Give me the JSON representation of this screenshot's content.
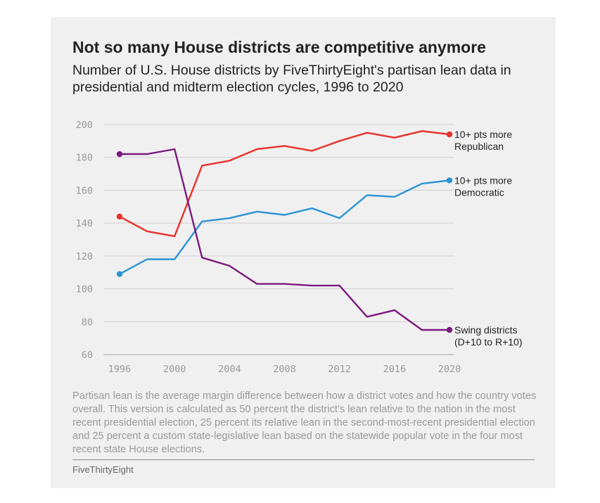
{
  "header": {
    "title": "Not so many House districts are competitive anymore",
    "subtitle": "Number of U.S. House districts by FiveThirtyEight's partisan lean data in presidential and midterm election cycles, 1996 to 2020"
  },
  "footnote": "Partisan lean is the average margin difference between how a district votes and how the country votes overall. This version is calculated as 50 percent the district’s lean relative to the nation in the most recent presidential election, 25 percent its relative lean in the second-most-recent presidential election and 25 percent a custom state-legislative lean based on the statewide popular vote in the four most recent state House elections.",
  "source": "FiveThirtyEight",
  "chart_data": {
    "type": "line",
    "x": [
      1996,
      1998,
      2000,
      2002,
      2004,
      2006,
      2008,
      2010,
      2012,
      2014,
      2016,
      2018,
      2020
    ],
    "xticks": [
      1996,
      2000,
      2004,
      2008,
      2012,
      2016,
      2020
    ],
    "xticklabels": [
      "1996",
      "2000",
      "2004",
      "2008",
      "2012",
      "2016",
      "2020"
    ],
    "yticks": [
      60,
      80,
      100,
      120,
      140,
      160,
      180,
      200
    ],
    "yticklabels": [
      "60",
      "80",
      "100",
      "120",
      "140",
      "160",
      "180",
      "200"
    ],
    "ylim": [
      60,
      200
    ],
    "xlim": [
      1996,
      2020
    ],
    "grid": true,
    "series": [
      {
        "label_lines": [
          "10+ pts more",
          "Republican"
        ],
        "color": "#e8312a",
        "values": [
          144,
          135,
          132,
          175,
          178,
          185,
          187,
          184,
          190,
          195,
          192,
          196,
          194
        ]
      },
      {
        "label_lines": [
          "10+ pts more",
          "Democratic"
        ],
        "color": "#2a93d5",
        "values": [
          109,
          118,
          118,
          141,
          143,
          147,
          145,
          149,
          143,
          157,
          156,
          164,
          166
        ]
      },
      {
        "label_lines": [
          "Swing districts",
          "(D+10 to R+10)"
        ],
        "color": "#7b1a7e",
        "values": [
          182,
          182,
          185,
          119,
          114,
          103,
          103,
          102,
          102,
          83,
          87,
          75,
          75
        ]
      }
    ]
  }
}
